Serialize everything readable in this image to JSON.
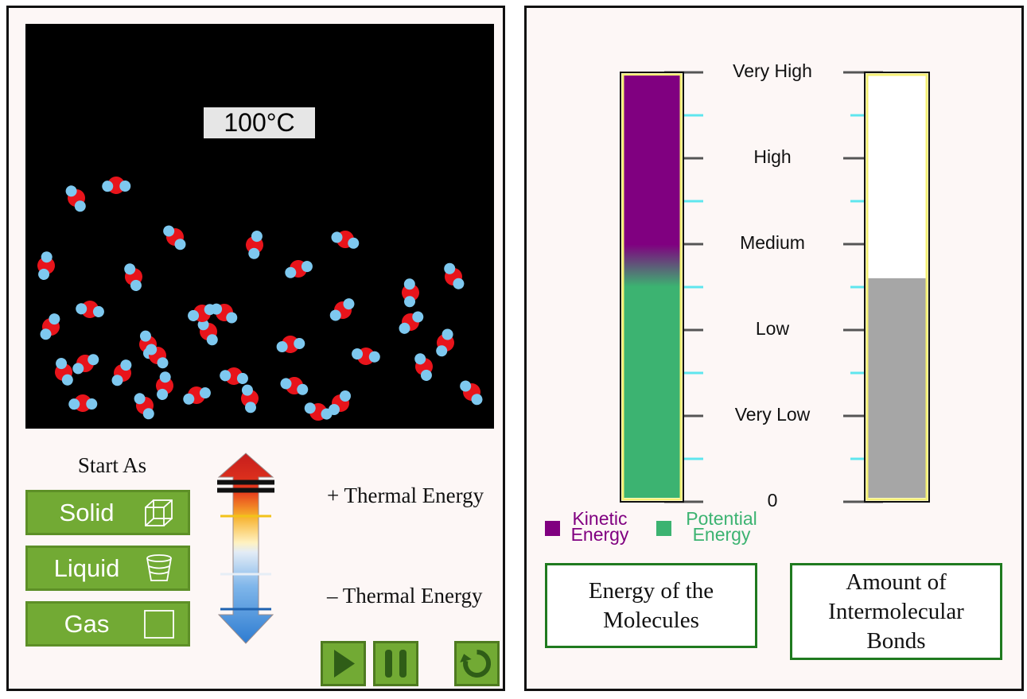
{
  "simulation": {
    "temperature_display": "100°C",
    "start_as_label": "Start As",
    "state_buttons": [
      {
        "label": "Solid",
        "icon": "cube-icon"
      },
      {
        "label": "Liquid",
        "icon": "cup-icon"
      },
      {
        "label": "Gas",
        "icon": "square-icon"
      }
    ],
    "thermal_plus_label": "+ Thermal Energy",
    "thermal_minus_label": "– Thermal Energy",
    "thermal_slider_level": 0.14,
    "controls": [
      "play-icon",
      "pause-icon",
      "reset-icon"
    ],
    "molecule_count": 36
  },
  "meters": {
    "scale_labels": [
      "Very High",
      "High",
      "Medium",
      "Low",
      "Very Low",
      "0"
    ],
    "energy_meter": {
      "kinetic_fraction": 0.5,
      "potential_fraction": 0.5,
      "kinetic_color": "#800080",
      "potential_color": "#3cb371"
    },
    "bonds_meter": {
      "fill_fraction": 0.52,
      "fill_color": "#a6a6a6"
    },
    "legend": {
      "kinetic_line1": "Kinetic",
      "kinetic_line2": "Energy",
      "potential_line1": "Potential",
      "potential_line2": "Energy"
    },
    "buttons": {
      "energy_line1": "Energy of the",
      "energy_line2": "Molecules",
      "bonds_line1": "Amount of",
      "bonds_line2": "Intermolecular",
      "bonds_line3": "Bonds"
    }
  },
  "colors": {
    "button_green": "#72aa34",
    "frame_green": "#1f7a1f",
    "oxygen": "#e8141b",
    "hydrogen": "#7ec8ef",
    "meter_border": "#f5f075"
  }
}
